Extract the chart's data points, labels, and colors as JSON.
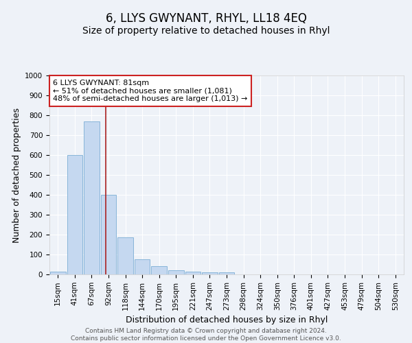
{
  "title": "6, LLYS GWYNANT, RHYL, LL18 4EQ",
  "subtitle": "Size of property relative to detached houses in Rhyl",
  "xlabel": "Distribution of detached houses by size in Rhyl",
  "ylabel": "Number of detached properties",
  "categories": [
    "15sqm",
    "41sqm",
    "67sqm",
    "92sqm",
    "118sqm",
    "144sqm",
    "170sqm",
    "195sqm",
    "221sqm",
    "247sqm",
    "273sqm",
    "298sqm",
    "324sqm",
    "350sqm",
    "376sqm",
    "401sqm",
    "427sqm",
    "453sqm",
    "479sqm",
    "504sqm",
    "530sqm"
  ],
  "values": [
    15,
    600,
    770,
    400,
    185,
    75,
    40,
    20,
    15,
    10,
    10,
    0,
    0,
    0,
    0,
    0,
    0,
    0,
    0,
    0,
    0
  ],
  "bar_color": "#c5d8f0",
  "bar_edge_color": "#7aadd4",
  "vline_x_index": 2.85,
  "vline_color": "#aa2222",
  "annotation_text": "6 LLYS GWYNANT: 81sqm\n← 51% of detached houses are smaller (1,081)\n48% of semi-detached houses are larger (1,013) →",
  "annotation_box_facecolor": "white",
  "annotation_box_edgecolor": "#cc2222",
  "ylim": [
    0,
    1000
  ],
  "yticks": [
    0,
    100,
    200,
    300,
    400,
    500,
    600,
    700,
    800,
    900,
    1000
  ],
  "footnote": "Contains HM Land Registry data © Crown copyright and database right 2024.\nContains public sector information licensed under the Open Government Licence v3.0.",
  "bg_color": "#eef2f8",
  "plot_bg_color": "#eef2f8",
  "grid_color": "#ffffff",
  "title_fontsize": 12,
  "subtitle_fontsize": 10,
  "axis_label_fontsize": 9,
  "tick_fontsize": 7.5,
  "annotation_fontsize": 8,
  "footnote_fontsize": 6.5
}
